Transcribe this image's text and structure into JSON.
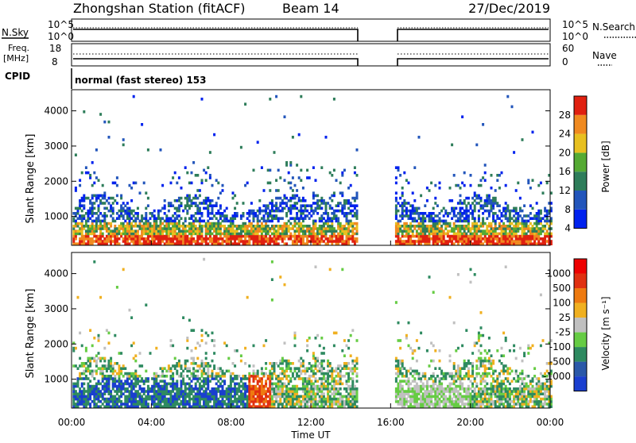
{
  "header": {
    "station": "Zhongshan Station (fitACF)",
    "beam": "Beam 14",
    "date": "27/Dec/2019"
  },
  "panels": {
    "nsky_label": "N.Sky",
    "nsky_ticks": [
      "10^5",
      "10^0"
    ],
    "nsearch_label": "N.Search",
    "nsearch_ticks": [
      "10^5",
      "10^0"
    ],
    "freq_label": "Freq.",
    "freq_unit": "[MHz]",
    "freq_ticks": [
      "18",
      "8"
    ],
    "nave_label": "Nave",
    "nave_ticks": [
      "60",
      "0"
    ],
    "cpid_label": "CPID",
    "cpid_text": "normal (fast stereo) 153"
  },
  "chart_data": [
    {
      "type": "heatmap",
      "name": "power",
      "ylabel": "Slant Range [km]",
      "yticks": [
        "4000",
        "3000",
        "2000",
        "1000"
      ],
      "ylim": [
        180,
        4600
      ],
      "xlim_hours": [
        0,
        24
      ],
      "colorbar_label": "Power [dB]",
      "colorbar_ticks": [
        "28",
        "24",
        "20",
        "16",
        "12",
        "8",
        "4"
      ],
      "colors": [
        "#0022ee",
        "#2255bb",
        "#2e7d5a",
        "#55aa33",
        "#e8c020",
        "#f08a20",
        "#e02010"
      ],
      "data_gap_hours": [
        14.3,
        16.2
      ]
    },
    {
      "type": "heatmap",
      "name": "velocity",
      "ylabel": "Slant Range [km]",
      "yticks": [
        "4000",
        "3000",
        "2000",
        "1000"
      ],
      "ylim": [
        180,
        4600
      ],
      "xlim_hours": [
        0,
        24
      ],
      "colorbar_label": "Velocity [m s⁻¹]",
      "colorbar_ticks": [
        "1000",
        "500",
        "100",
        "25",
        "-25",
        "-100",
        "-500",
        "-1000"
      ],
      "colors": [
        "#1a3fcf",
        "#2a58a8",
        "#2e8a60",
        "#66cc44",
        "#c0c0c0",
        "#f0b020",
        "#ee7a10",
        "#e03010",
        "#ee0000"
      ],
      "data_gap_hours": [
        14.3,
        16.2
      ]
    }
  ],
  "xaxis": {
    "ticks": [
      "00:00",
      "04:00",
      "08:00",
      "12:00",
      "16:00",
      "20:00",
      "00:00"
    ],
    "label": "Time UT"
  }
}
